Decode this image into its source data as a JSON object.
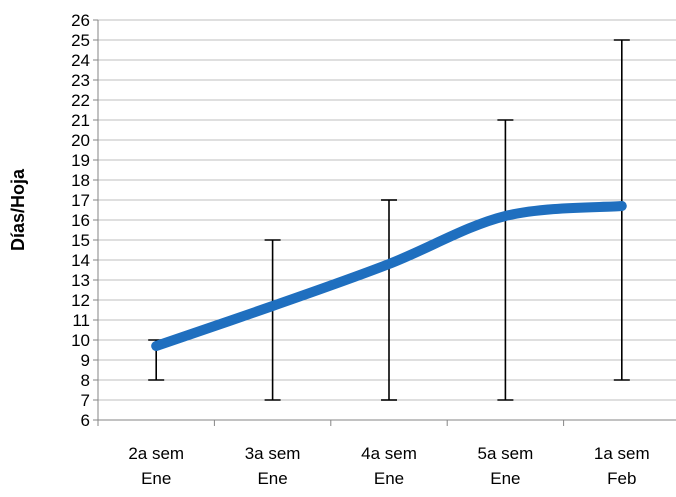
{
  "chart_data": {
    "type": "line",
    "title": "",
    "xlabel": "",
    "ylabel": "Días/Hoja",
    "ylim": [
      6,
      26
    ],
    "ytick_step": 1,
    "grid": true,
    "legend": "none",
    "categories": [
      [
        "2a sem",
        "Ene"
      ],
      [
        "3a sem",
        "Ene"
      ],
      [
        "4a sem",
        "Ene"
      ],
      [
        "5a sem",
        "Ene"
      ],
      [
        "1a sem",
        "Feb"
      ]
    ],
    "series": [
      {
        "values": [
          9.7,
          11.7,
          13.8,
          16.2,
          16.7
        ],
        "error_low": [
          8,
          7,
          7,
          7,
          8
        ],
        "error_high": [
          10,
          15,
          17,
          21,
          25
        ],
        "color": "#1f6fbf",
        "smooth": true
      }
    ]
  }
}
